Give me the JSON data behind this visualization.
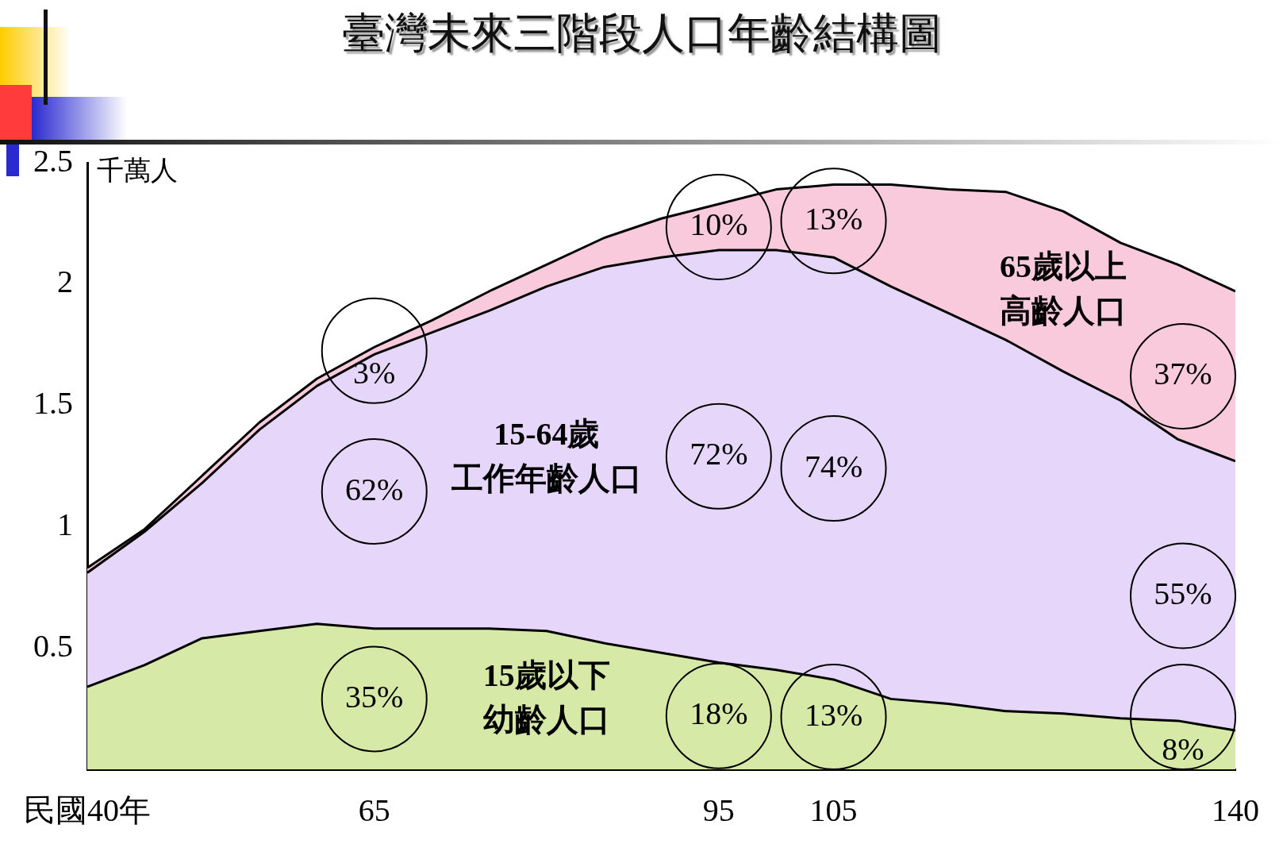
{
  "chart_data": {
    "type": "area",
    "stacked": true,
    "title": "臺灣未來三階段人口年齡結構圖",
    "ylabel": "千萬人",
    "x": [
      40,
      45,
      50,
      55,
      60,
      65,
      70,
      75,
      80,
      85,
      90,
      95,
      100,
      105,
      110,
      115,
      120,
      125,
      130,
      135,
      140
    ],
    "xlim": [
      40,
      140
    ],
    "xticks": [
      {
        "value": 40,
        "label": "民國40年"
      },
      65,
      95,
      105,
      140
    ],
    "ylim": [
      0,
      2.5
    ],
    "yticks": [
      0.5,
      1,
      1.5,
      2,
      2.5
    ],
    "grid": false,
    "legend": false,
    "series": [
      {
        "name": "15歲以下幼齡人口",
        "color": "#d6e9a6",
        "values": [
          0.34,
          0.43,
          0.54,
          0.57,
          0.6,
          0.58,
          0.58,
          0.58,
          0.57,
          0.52,
          0.48,
          0.44,
          0.41,
          0.37,
          0.29,
          0.27,
          0.24,
          0.23,
          0.21,
          0.2,
          0.16
        ]
      },
      {
        "name": "15-64歲工作年齡人口",
        "color": "#e6d6fa",
        "values": [
          0.47,
          0.55,
          0.64,
          0.83,
          0.98,
          1.13,
          1.22,
          1.31,
          1.42,
          1.55,
          1.63,
          1.7,
          1.73,
          1.74,
          1.7,
          1.61,
          1.53,
          1.41,
          1.31,
          1.16,
          1.11
        ]
      },
      {
        "name": "65歲以上高齡人口",
        "color": "#f9c9dc",
        "values": [
          0.02,
          0.01,
          0.03,
          0.03,
          0.03,
          0.03,
          0.05,
          0.08,
          0.09,
          0.12,
          0.16,
          0.19,
          0.25,
          0.3,
          0.42,
          0.51,
          0.61,
          0.66,
          0.65,
          0.72,
          0.7
        ]
      }
    ],
    "annotations": [
      "3%",
      "62%",
      "35%",
      "10%",
      "72%",
      "18%",
      "13%",
      "74%",
      "13%",
      "37%",
      "55%",
      "8%"
    ]
  }
}
